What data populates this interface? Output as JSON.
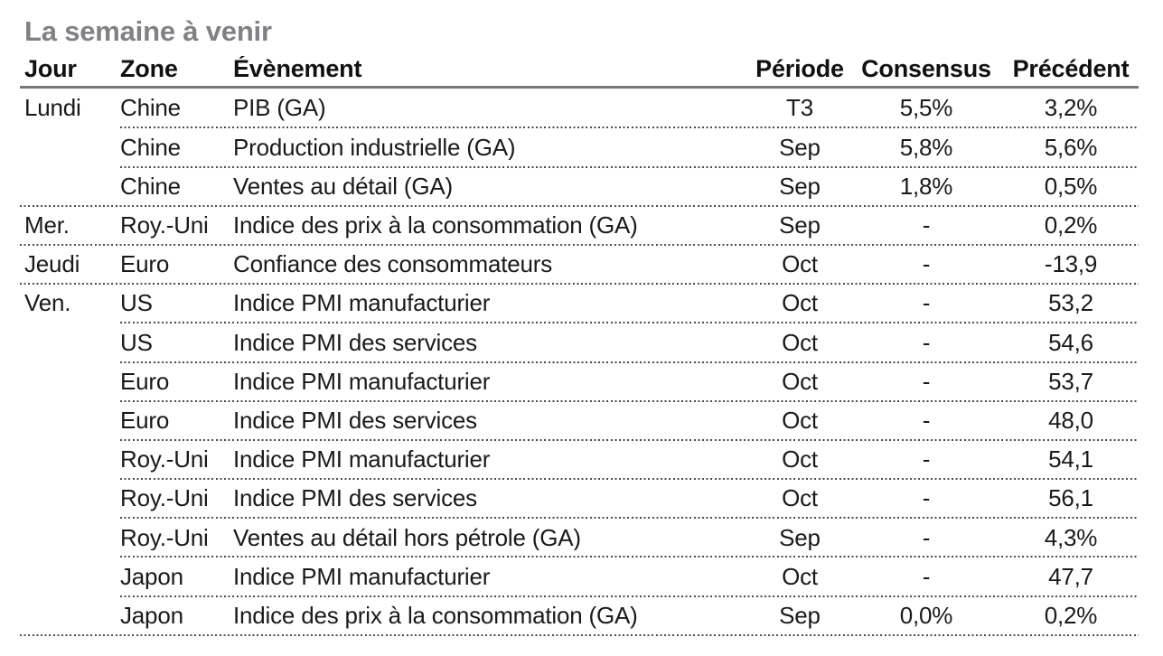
{
  "title": "La semaine à venir",
  "colors": {
    "title_gray": "#7f8184",
    "header_rule_gray": "#77787a",
    "dotted_rule_gray": "#4c4c4e",
    "text": "#1a1a1a",
    "background": "#ffffff"
  },
  "table": {
    "columns": [
      "Jour",
      "Zone",
      "Évènement",
      "Période",
      "Consensus",
      "Précédent"
    ],
    "rows": [
      {
        "jour": "Lundi",
        "zone": "Chine",
        "evenement": "PIB (GA)",
        "periode": "T3",
        "consensus": "5,5%",
        "precedent": "3,2%"
      },
      {
        "jour": "",
        "zone": "Chine",
        "evenement": "Production industrielle (GA)",
        "periode": "Sep",
        "consensus": "5,8%",
        "precedent": "5,6%"
      },
      {
        "jour": "",
        "zone": "Chine",
        "evenement": "Ventes au détail (GA)",
        "periode": "Sep",
        "consensus": "1,8%",
        "precedent": "0,5%"
      },
      {
        "jour": "Mer.",
        "zone": "Roy.-Uni",
        "evenement": "Indice des prix à la consommation (GA)",
        "periode": "Sep",
        "consensus": "-",
        "precedent": "0,2%"
      },
      {
        "jour": "Jeudi",
        "zone": "Euro",
        "evenement": "Confiance des consommateurs",
        "periode": "Oct",
        "consensus": "-",
        "precedent": "-13,9"
      },
      {
        "jour": "Ven.",
        "zone": "US",
        "evenement": "Indice PMI manufacturier",
        "periode": "Oct",
        "consensus": "-",
        "precedent": "53,2"
      },
      {
        "jour": "",
        "zone": "US",
        "evenement": "Indice PMI des services",
        "periode": "Oct",
        "consensus": "-",
        "precedent": "54,6"
      },
      {
        "jour": "",
        "zone": "Euro",
        "evenement": "Indice PMI manufacturier",
        "periode": "Oct",
        "consensus": "-",
        "precedent": "53,7"
      },
      {
        "jour": "",
        "zone": "Euro",
        "evenement": "Indice PMI des services",
        "periode": "Oct",
        "consensus": "-",
        "precedent": "48,0"
      },
      {
        "jour": "",
        "zone": "Roy.-Uni",
        "evenement": "Indice PMI manufacturier",
        "periode": "Oct",
        "consensus": "-",
        "precedent": "54,1"
      },
      {
        "jour": "",
        "zone": "Roy.-Uni",
        "evenement": "Indice PMI des services",
        "periode": "Oct",
        "consensus": "-",
        "precedent": "56,1"
      },
      {
        "jour": "",
        "zone": "Roy.-Uni",
        "evenement": "Ventes au détail hors pétrole (GA)",
        "periode": "Sep",
        "consensus": "-",
        "precedent": "4,3%"
      },
      {
        "jour": "",
        "zone": "Japon",
        "evenement": "Indice PMI manufacturier",
        "periode": "Oct",
        "consensus": "-",
        "precedent": "47,7"
      },
      {
        "jour": "",
        "zone": "Japon",
        "evenement": "Indice des prix à la consommation (GA)",
        "periode": "Sep",
        "consensus": "0,0%",
        "precedent": "0,2%"
      }
    ]
  }
}
